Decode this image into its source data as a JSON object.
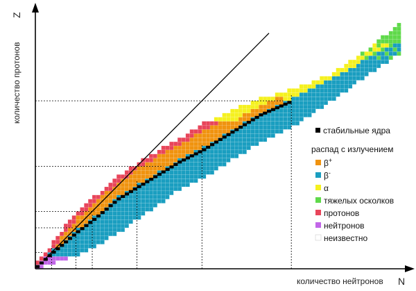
{
  "chart_data": {
    "type": "scatter",
    "title": "",
    "xlabel": "количество нейтронов",
    "x_letter": "N",
    "ylabel": "количество протонов",
    "y_letter": "Z",
    "xlim": [
      0,
      178
    ],
    "ylim": [
      0,
      118
    ],
    "grid": false,
    "legend_position": "right",
    "stable_label": "стабильные ядра",
    "legend_heading": "распад с излучением",
    "legend": [
      {
        "key": "beta_plus",
        "label": "β",
        "sup": "+",
        "color": "#f0930f"
      },
      {
        "key": "beta_minus",
        "label": "β",
        "sup": "-",
        "color": "#1a9ec0"
      },
      {
        "key": "alpha",
        "label": "α",
        "sup": "",
        "color": "#f5f11f"
      },
      {
        "key": "heavy",
        "label": "тяжелых осколков",
        "sup": "",
        "color": "#5fd94a"
      },
      {
        "key": "proton",
        "label": "протонов",
        "sup": "",
        "color": "#e8455a"
      },
      {
        "key": "neutron",
        "label": "нейтронов",
        "sup": "",
        "color": "#c266e8"
      },
      {
        "key": "unknown",
        "label": "неизвестно",
        "sup": "",
        "color": "#ffffff"
      }
    ],
    "stable_color": "#000000",
    "magic_numbers": {
      "N": [
        8,
        20,
        28,
        50,
        82,
        126
      ],
      "Z": [
        8,
        20,
        28,
        50,
        82
      ]
    },
    "reference_line": "N = Z",
    "stability_valley": [
      [
        0,
        1
      ],
      [
        8,
        8
      ],
      [
        14,
        13
      ],
      [
        20,
        18
      ],
      [
        28,
        24
      ],
      [
        40,
        34
      ],
      [
        50,
        40
      ],
      [
        60,
        46
      ],
      [
        70,
        52
      ],
      [
        82,
        58
      ],
      [
        90,
        63
      ],
      [
        100,
        69
      ],
      [
        110,
        75
      ],
      [
        126,
        82
      ],
      [
        140,
        89
      ],
      [
        160,
        100
      ],
      [
        178,
        110
      ]
    ],
    "band_limits": {
      "upper": [
        [
          0,
          3
        ],
        [
          8,
          12
        ],
        [
          14,
          20
        ],
        [
          20,
          27
        ],
        [
          28,
          34
        ],
        [
          40,
          44
        ],
        [
          50,
          51
        ],
        [
          60,
          57
        ],
        [
          70,
          62
        ],
        [
          82,
          70
        ],
        [
          100,
          78
        ],
        [
          110,
          82
        ],
        [
          130,
          88
        ],
        [
          145,
          94
        ],
        [
          160,
          104
        ],
        [
          170,
          112
        ],
        [
          178,
          118
        ]
      ],
      "lower": [
        [
          0,
          0
        ],
        [
          8,
          2
        ],
        [
          14,
          4
        ],
        [
          20,
          6
        ],
        [
          28,
          10
        ],
        [
          40,
          17
        ],
        [
          50,
          24
        ],
        [
          60,
          31
        ],
        [
          70,
          38
        ],
        [
          82,
          44
        ],
        [
          100,
          55
        ],
        [
          110,
          61
        ],
        [
          126,
          69
        ],
        [
          140,
          78
        ],
        [
          160,
          92
        ],
        [
          178,
          104
        ]
      ]
    }
  }
}
